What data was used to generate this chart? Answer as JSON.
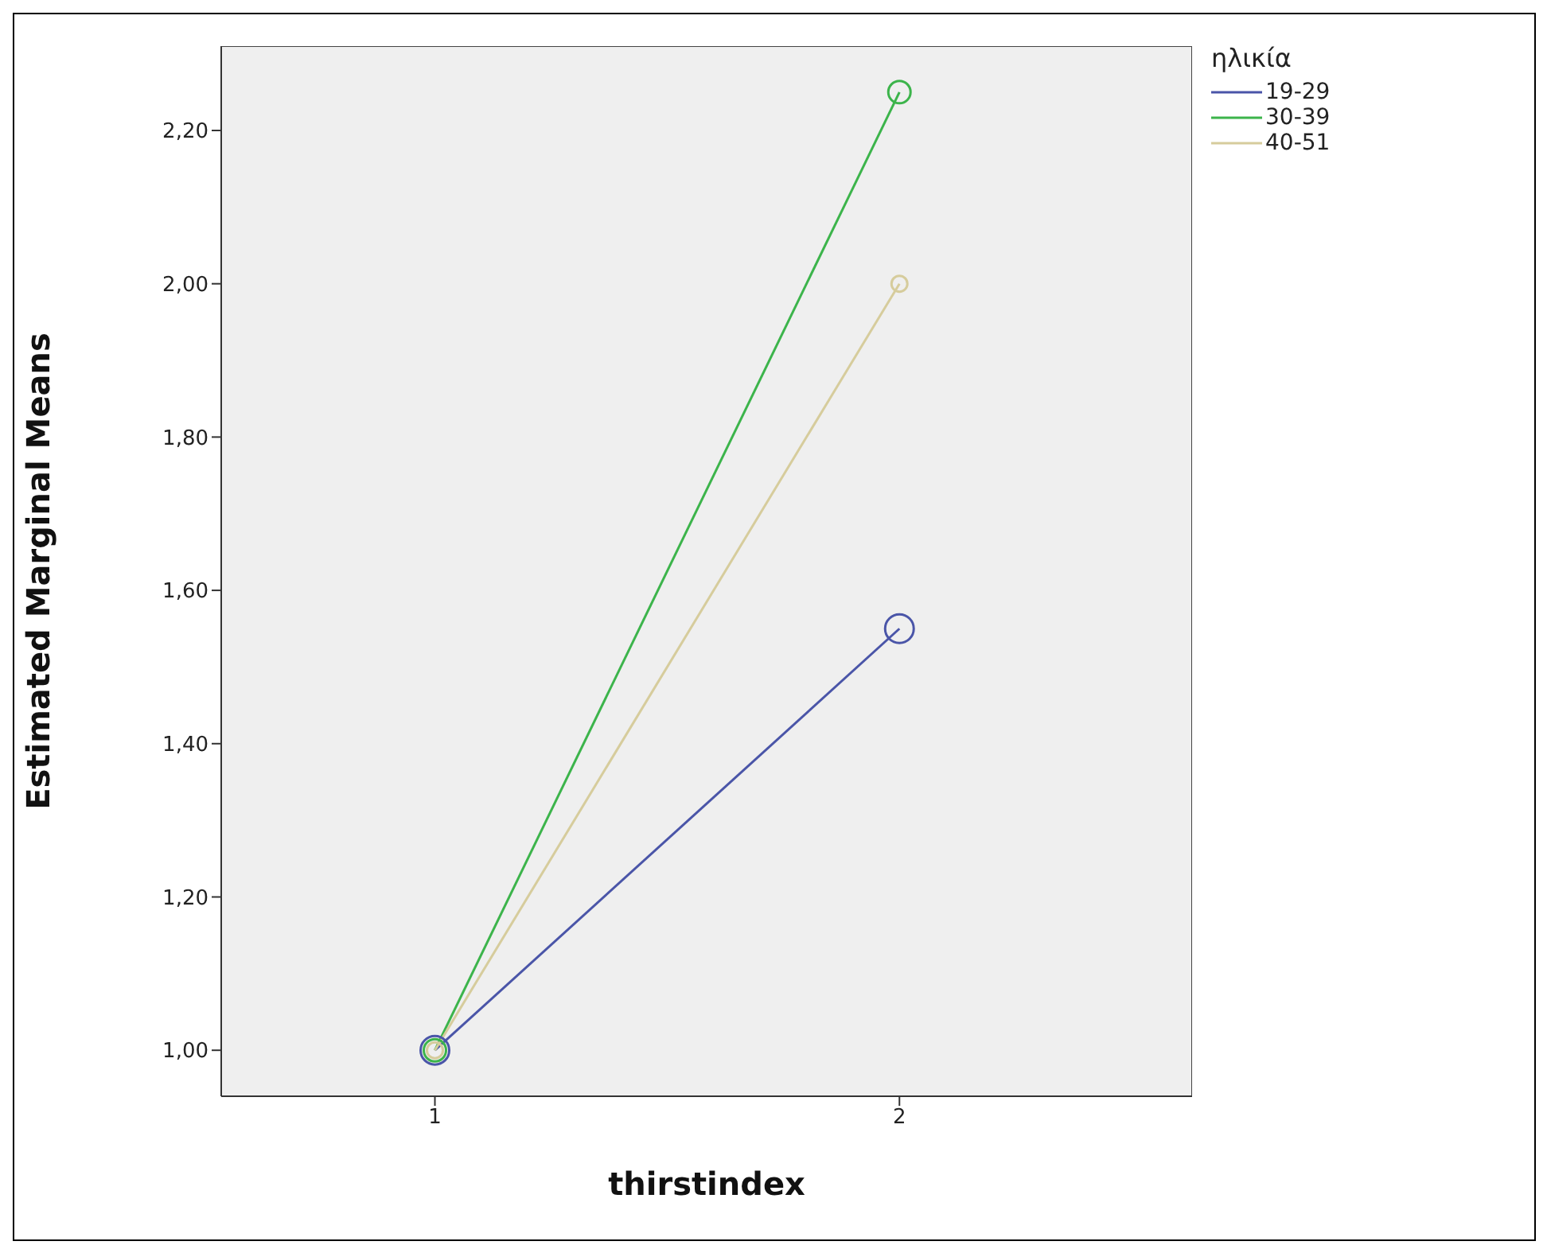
{
  "chart_data": {
    "type": "line",
    "xlabel": "thirstindex",
    "ylabel": "Estimated Marginal Means",
    "legend_title": "ηλικία",
    "x": [
      1,
      2
    ],
    "xlim": [
      0.54,
      2.63
    ],
    "xticks": [
      1,
      2
    ],
    "ylim": [
      0.94,
      2.31
    ],
    "yticks": [
      {
        "value": 1,
        "label": "1,00"
      },
      {
        "value": 1.2,
        "label": "1,20"
      },
      {
        "value": 1.4,
        "label": "1,40"
      },
      {
        "value": 1.6,
        "label": "1,60"
      },
      {
        "value": 1.8,
        "label": "1,80"
      },
      {
        "value": 2,
        "label": "2,00"
      },
      {
        "value": 2.2,
        "label": "2,20"
      }
    ],
    "series": [
      {
        "name": "19-29",
        "color": "#4a55a8",
        "values": [
          1,
          1.55
        ]
      },
      {
        "name": "30-39",
        "color": "#3cb44b",
        "values": [
          1,
          2.25
        ]
      },
      {
        "name": "40-51",
        "color": "#d6cc9c",
        "values": [
          1,
          2
        ]
      }
    ],
    "marker": "circle",
    "line_style": "solid",
    "legend": "top right",
    "grid": false
  }
}
